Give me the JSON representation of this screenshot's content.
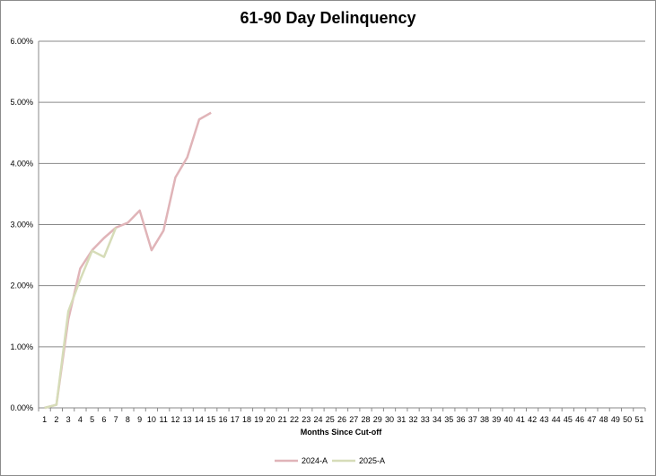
{
  "chart_data": {
    "type": "line",
    "title": "61-90 Day Delinquency",
    "xlabel": "Months Since Cut-off",
    "ylabel": "",
    "x": [
      1,
      2,
      3,
      4,
      5,
      6,
      7,
      8,
      9,
      10,
      11,
      12,
      13,
      14,
      15,
      16,
      17,
      18,
      19,
      20,
      21,
      22,
      23,
      24,
      25,
      26,
      27,
      28,
      29,
      30,
      31,
      32,
      33,
      34,
      35,
      36,
      37,
      38,
      39,
      40,
      41,
      42,
      43,
      44,
      45,
      46,
      47,
      48,
      49,
      50,
      51
    ],
    "y_ticks": [
      "0.00%",
      "1.00%",
      "2.00%",
      "3.00%",
      "4.00%",
      "5.00%",
      "6.00%"
    ],
    "ylim": [
      0,
      6
    ],
    "grid": true,
    "legend_position": "bottom",
    "series": [
      {
        "name": "2024-A",
        "color": "#e0b4b8",
        "x": [
          1,
          2,
          3,
          4,
          5,
          6,
          7,
          8,
          9,
          10,
          11,
          12,
          13,
          14,
          15
        ],
        "values": [
          0.0,
          0.05,
          1.45,
          2.28,
          2.58,
          2.78,
          2.95,
          3.03,
          3.23,
          2.58,
          2.9,
          3.77,
          4.1,
          4.72,
          4.83
        ]
      },
      {
        "name": "2025-A",
        "color": "#d6dcb8",
        "x": [
          1,
          2,
          3,
          4,
          5,
          6,
          7
        ],
        "values": [
          0.0,
          0.05,
          1.58,
          2.1,
          2.57,
          2.47,
          2.95
        ]
      }
    ]
  }
}
